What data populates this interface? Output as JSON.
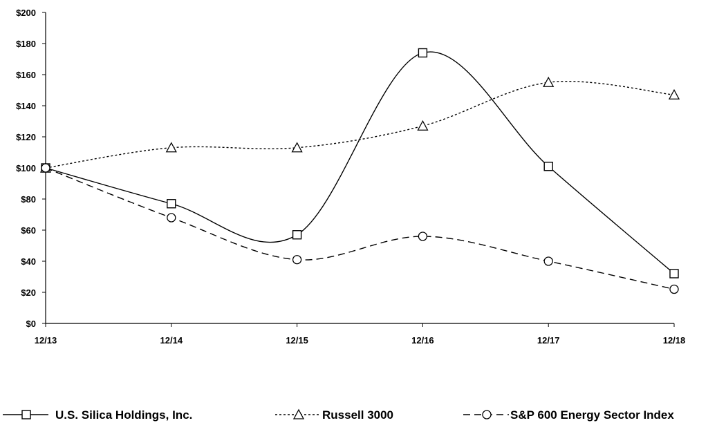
{
  "chart_data": {
    "type": "line",
    "categories": [
      "12/13",
      "12/14",
      "12/15",
      "12/16",
      "12/17",
      "12/18"
    ],
    "y_ticks": [
      "$0",
      "$20",
      "$40",
      "$60",
      "$80",
      "$100",
      "$120",
      "$140",
      "$160",
      "$180",
      "$200"
    ],
    "ylim": [
      0,
      200
    ],
    "grid": false,
    "legend_position": "bottom",
    "series": [
      {
        "name": "U.S. Silica Holdings, Inc.",
        "marker": "square",
        "line_style": "solid",
        "smooth": true,
        "values": [
          100,
          77,
          57,
          174,
          101,
          32
        ]
      },
      {
        "name": "Russell 3000",
        "marker": "triangle",
        "line_style": "dotted",
        "smooth": true,
        "values": [
          100,
          113,
          113,
          127,
          155,
          147
        ]
      },
      {
        "name": "S&P 600 Energy Sector Index",
        "marker": "circle",
        "line_style": "dashed",
        "smooth": true,
        "values": [
          100,
          68,
          41,
          56,
          40,
          22
        ]
      }
    ]
  }
}
